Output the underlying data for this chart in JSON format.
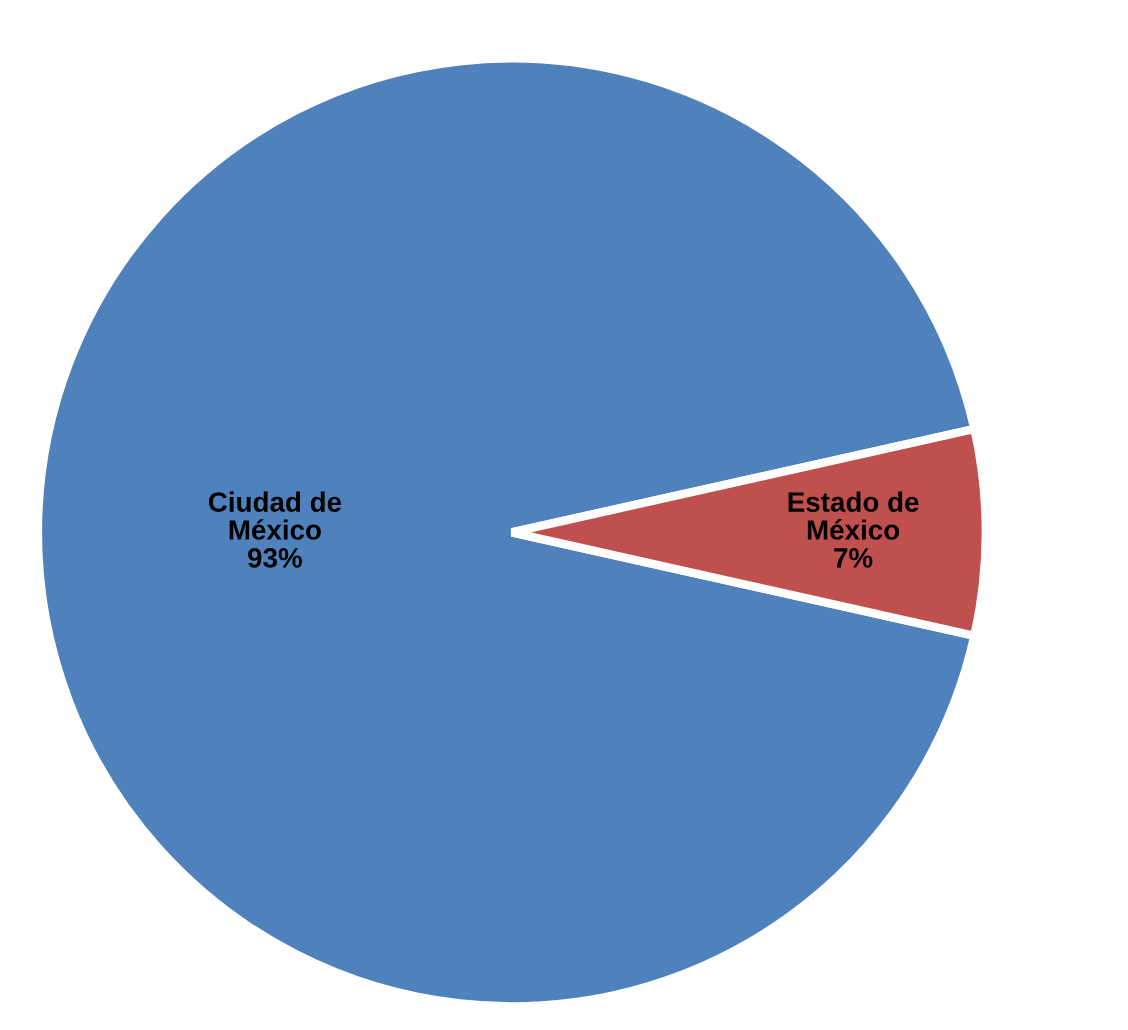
{
  "chart_data": {
    "type": "pie",
    "categories": [
      "Ciudad de\nMéxico",
      "Estado de\nMéxico"
    ],
    "values": [
      93,
      7
    ],
    "value_labels": [
      "93%",
      "7%"
    ],
    "colors": [
      "#4f81bd",
      "#c0504d"
    ],
    "legend": false
  }
}
